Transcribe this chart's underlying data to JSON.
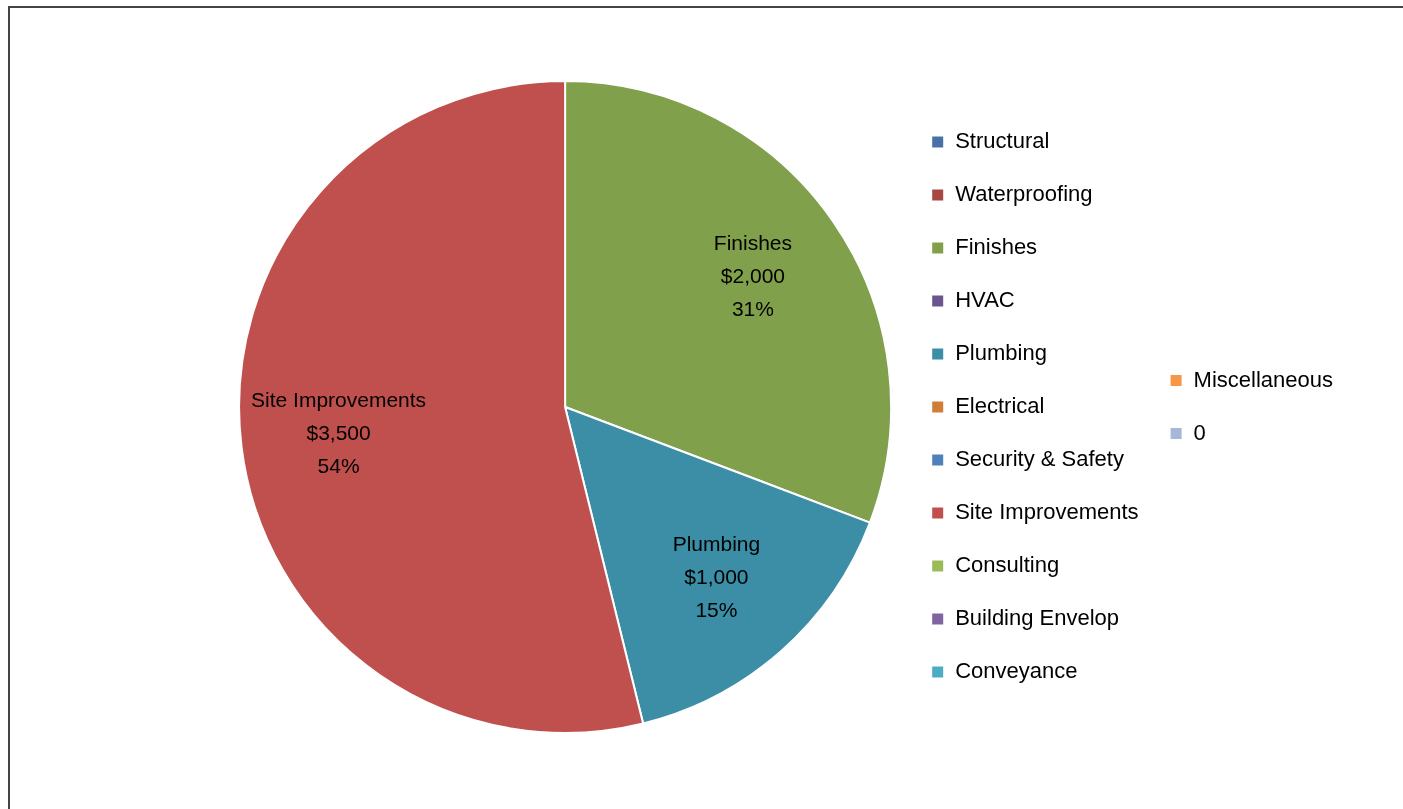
{
  "chart_data": {
    "type": "pie",
    "categories": [
      "Structural",
      "Waterproofing",
      "Finishes",
      "HVAC",
      "Plumbing",
      "Electrical",
      "Security & Safety",
      "Site Improvements",
      "Consulting",
      "Building Envelop",
      "Conveyance",
      "Miscellaneous",
      "0"
    ],
    "values": [
      0,
      0,
      2000,
      0,
      1000,
      0,
      0,
      3500,
      0,
      0,
      0,
      0,
      0
    ],
    "colors": [
      "#4a70a8",
      "#a84644",
      "#80a04b",
      "#6b558f",
      "#3b8ea5",
      "#d07d38",
      "#4f81bd",
      "#c0504d",
      "#9bbb59",
      "#8064a2",
      "#4bacc6",
      "#f79646",
      "#a5b8d9"
    ],
    "value_labels": [
      null,
      null,
      "Finishes\n$2,000\n31%",
      null,
      "Plumbing\n$1,000\n15%",
      null,
      null,
      "Site Improvements\n$3,500\n54%",
      null,
      null,
      null,
      null,
      null
    ],
    "legend": "right"
  }
}
